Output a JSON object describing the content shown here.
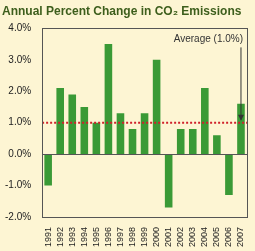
{
  "chart_data": {
    "type": "bar",
    "title": "Annual Percent Change in CO₂ Emissions",
    "categories": [
      "1991",
      "1992",
      "1993",
      "1994",
      "1995",
      "1996",
      "1997",
      "1998",
      "1999",
      "2000",
      "2001",
      "2002",
      "2003",
      "2004",
      "2005",
      "2006",
      "2007"
    ],
    "values": [
      -1.0,
      2.1,
      1.9,
      1.5,
      1.0,
      3.5,
      1.3,
      0.8,
      1.3,
      3.0,
      -1.7,
      0.8,
      0.8,
      2.1,
      0.6,
      -1.3,
      1.6
    ],
    "color": "#3a9a36",
    "ylim": [
      -2,
      4
    ],
    "yticks": [
      {
        "value": -2,
        "label": "-2.0%"
      },
      {
        "value": -1,
        "label": "-1.0%"
      },
      {
        "value": 0,
        "label": "0.0%"
      },
      {
        "value": 1,
        "label": "1.0%"
      },
      {
        "value": 2,
        "label": "2.0%"
      },
      {
        "value": 3,
        "label": "3.0%"
      },
      {
        "value": 4,
        "label": "4.0%"
      }
    ],
    "grid": false,
    "annotations": [
      {
        "text": "Average (1.0%)",
        "y": 1.0
      }
    ]
  }
}
